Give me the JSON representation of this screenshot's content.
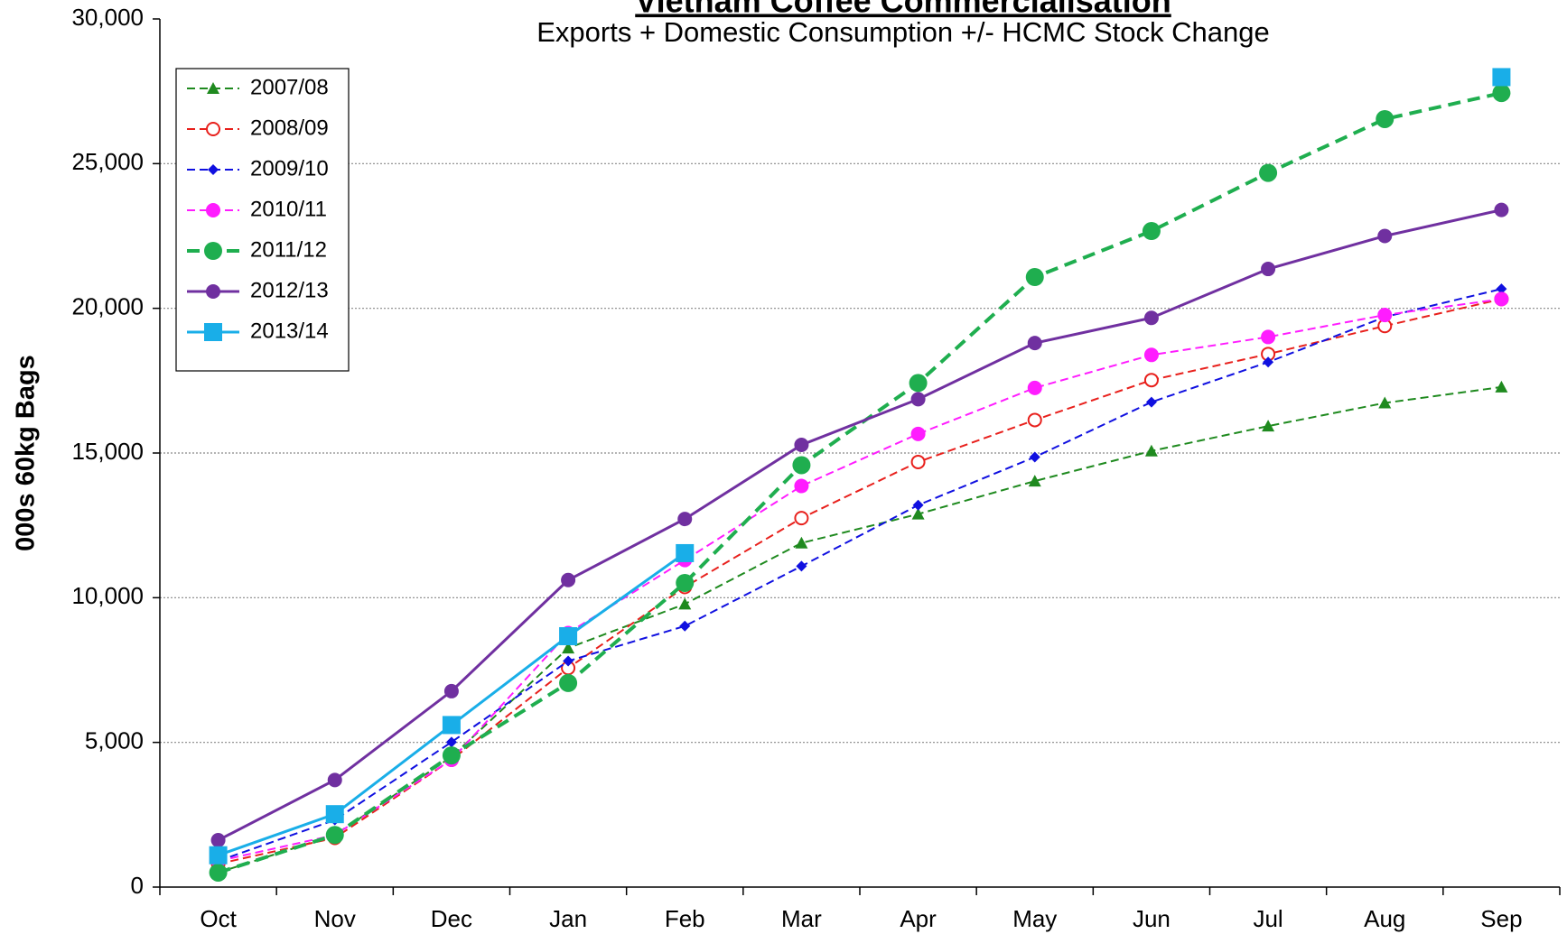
{
  "chart_data": {
    "type": "line",
    "title": "Vietnam Coffee Commercialisation",
    "subtitle": "Exports + Domestic Consumption +/- HCMC Stock Change",
    "y_label": "000s 60kg Bags",
    "categories": [
      "Oct",
      "Nov",
      "Dec",
      "Jan",
      "Feb",
      "Mar",
      "Apr",
      "May",
      "Jun",
      "Jul",
      "Aug",
      "Sep"
    ],
    "ylim": [
      0,
      30000
    ],
    "yticks": [
      0,
      {
        "value": 5000,
        "label": "5,000"
      },
      {
        "value": 10000,
        "label": "10,000"
      },
      {
        "value": 15000,
        "label": "15,000"
      },
      {
        "value": 20000,
        "label": "20,000"
      },
      {
        "value": 25000,
        "label": "25,000"
      },
      {
        "value": 30000,
        "label": "30,000"
      }
    ],
    "grid": true,
    "legend": "upper left",
    "series": [
      {
        "name": "2007/08",
        "color": "#1f8a1f",
        "marker": "triangle",
        "dash": true,
        "values": [
          500,
          1800,
          4500,
          8260,
          9780,
          11890,
          12890,
          14030,
          15070,
          15930,
          16730,
          17280
        ]
      },
      {
        "name": "2008/09",
        "color": "#e8201c",
        "marker": "open-circle",
        "dash": true,
        "values": [
          800,
          1700,
          4400,
          7570,
          10370,
          12750,
          14690,
          16140,
          17520,
          18420,
          19390,
          20320
        ]
      },
      {
        "name": "2009/10",
        "color": "#1010e0",
        "marker": "diamond",
        "dash": true,
        "values": [
          900,
          2320,
          5010,
          7810,
          9020,
          11090,
          13200,
          14860,
          16760,
          18140,
          19700,
          20670
        ]
      },
      {
        "name": "2010/11",
        "color": "#ff1cff",
        "marker": "circle",
        "dash": true,
        "values": [
          900,
          1800,
          4400,
          8780,
          11300,
          13860,
          15660,
          17250,
          18390,
          19010,
          19770,
          20320
        ]
      },
      {
        "name": "2011/12",
        "color": "#1fae4f",
        "marker": "big-circle",
        "dash": true,
        "values": [
          500,
          1800,
          4550,
          7050,
          10510,
          14580,
          17420,
          21080,
          22670,
          24680,
          26540,
          27440
        ]
      },
      {
        "name": "2012/13",
        "color": "#7030a0",
        "marker": "circle",
        "dash": false,
        "values": [
          1620,
          3700,
          6770,
          10610,
          12720,
          15280,
          16860,
          18800,
          19670,
          21360,
          22500,
          23400
        ]
      },
      {
        "name": "2013/14",
        "color": "#19aee8",
        "marker": "square",
        "dash": false,
        "values": [
          1100,
          2520,
          5600,
          8670,
          11540,
          null,
          null,
          null,
          null,
          null,
          null,
          27990
        ]
      }
    ]
  }
}
